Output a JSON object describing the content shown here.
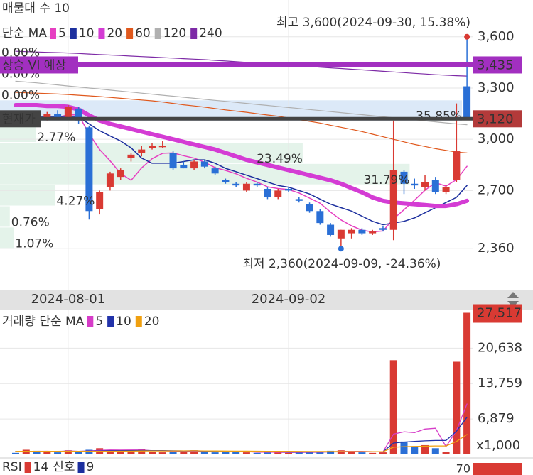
{
  "chart_data": [
    {
      "type": "candlestick",
      "title": "매물대 수 10",
      "legend_title": "단순 MA",
      "categories": [
        null,
        null,
        null,
        null,
        null,
        "2024-08-01",
        null,
        null,
        null,
        null,
        null,
        null,
        null,
        null,
        null,
        null,
        null,
        null,
        null,
        null,
        null,
        null,
        null,
        null,
        null,
        null,
        "2024-09-02",
        null,
        null,
        null,
        null,
        null,
        null,
        null,
        null,
        null,
        null,
        null,
        null,
        null,
        null,
        null,
        null,
        null
      ],
      "open": [
        3130,
        3100,
        3140,
        3120,
        3150,
        3130,
        3180,
        3070,
        2590,
        2720,
        2780,
        2890,
        2920,
        2950,
        2960,
        2920,
        2850,
        2830,
        2870,
        2830,
        2760,
        2740,
        2700,
        2740,
        2710,
        2660,
        2710,
        2650,
        2620,
        2580,
        2500,
        2420,
        2450,
        2470,
        2450,
        2480,
        2470,
        2810,
        2740,
        2720,
        2760,
        2690,
        2760,
        3310
      ],
      "high": [
        3150,
        3140,
        3160,
        3160,
        3170,
        3200,
        3190,
        3080,
        2700,
        2810,
        2830,
        2920,
        2960,
        2980,
        2990,
        2930,
        2870,
        2880,
        2880,
        2840,
        2770,
        2750,
        2750,
        2750,
        2720,
        2710,
        2720,
        2660,
        2630,
        2590,
        2510,
        2470,
        2480,
        2480,
        2470,
        2490,
        3110,
        2820,
        2770,
        2790,
        2780,
        2730,
        3210,
        3600
      ],
      "low": [
        3100,
        3090,
        3110,
        3110,
        3120,
        3120,
        3090,
        2530,
        2560,
        2700,
        2760,
        2870,
        2900,
        2940,
        2950,
        2820,
        2830,
        2820,
        2830,
        2790,
        2740,
        2720,
        2690,
        2720,
        2650,
        2650,
        2690,
        2630,
        2570,
        2500,
        2430,
        2360,
        2420,
        2440,
        2440,
        2460,
        2410,
        2680,
        2710,
        2700,
        2680,
        2680,
        2750,
        3120
      ],
      "close": [
        3110,
        3130,
        3120,
        3150,
        3130,
        3190,
        3110,
        2580,
        2690,
        2800,
        2820,
        2910,
        2940,
        2960,
        2960,
        2830,
        2830,
        2870,
        2840,
        2800,
        2750,
        2730,
        2740,
        2730,
        2660,
        2700,
        2700,
        2640,
        2580,
        2510,
        2440,
        2470,
        2470,
        2450,
        2460,
        2470,
        2820,
        2740,
        2730,
        2750,
        2690,
        2720,
        2930,
        3120
      ],
      "up_color": "#d93a33",
      "down_color": "#2a6fd6",
      "series": [
        {
          "name": "5",
          "color": "#e63fc1",
          "width": 1.5,
          "values": [
            3120,
            3120,
            3120,
            3125,
            3128,
            3144,
            3142,
            3032,
            2940,
            2874,
            2800,
            2760,
            2832,
            2886,
            2918,
            2920,
            2904,
            2890,
            2866,
            2834,
            2818,
            2798,
            2772,
            2750,
            2722,
            2712,
            2706,
            2686,
            2656,
            2626,
            2574,
            2528,
            2494,
            2468,
            2458,
            2464,
            2534,
            2588,
            2644,
            2702,
            2746,
            2726,
            2764,
            2842
          ]
        },
        {
          "name": "10",
          "color": "#1c2f9e",
          "width": 1.5,
          "values": [
            3130,
            3130,
            3130,
            3130,
            3130,
            3130,
            3130,
            3090,
            3050,
            3020,
            2990,
            2950,
            2890,
            2860,
            2860,
            2860,
            2870,
            2880,
            2880,
            2860,
            2830,
            2810,
            2790,
            2770,
            2750,
            2730,
            2720,
            2700,
            2680,
            2650,
            2620,
            2600,
            2580,
            2550,
            2520,
            2500,
            2510,
            2520,
            2540,
            2570,
            2600,
            2630,
            2660,
            2730
          ]
        },
        {
          "name": "20",
          "color": "#d43cd4",
          "width": 6,
          "values": [
            3200,
            3200,
            3200,
            3195,
            3195,
            3190,
            3175,
            3140,
            3110,
            3090,
            3075,
            3060,
            3045,
            3030,
            3015,
            3000,
            2985,
            2970,
            2955,
            2940,
            2920,
            2900,
            2880,
            2865,
            2850,
            2835,
            2820,
            2805,
            2790,
            2775,
            2760,
            2740,
            2715,
            2690,
            2660,
            2640,
            2630,
            2625,
            2620,
            2615,
            2610,
            2610,
            2620,
            2640
          ]
        },
        {
          "name": "60",
          "color": "#e0581c",
          "width": 1.2,
          "values": [
            3275,
            3272,
            3270,
            3268,
            3265,
            3262,
            3258,
            3254,
            3250,
            3245,
            3240,
            3235,
            3230,
            3225,
            3218,
            3210,
            3202,
            3195,
            3188,
            3180,
            3172,
            3165,
            3158,
            3150,
            3142,
            3135,
            3125,
            3115,
            3105,
            3095,
            3082,
            3070,
            3058,
            3045,
            3030,
            3015,
            3000,
            2985,
            2970,
            2958,
            2945,
            2935,
            2925,
            2920
          ]
        },
        {
          "name": "120",
          "color": "#b0b0b0",
          "width": 1.2,
          "values": [
            3340,
            3335,
            3330,
            3324,
            3318,
            3312,
            3306,
            3300,
            3294,
            3288,
            3282,
            3276,
            3270,
            3264,
            3258,
            3252,
            3246,
            3240,
            3234,
            3228,
            3222,
            3216,
            3210,
            3204,
            3198,
            3192,
            3186,
            3180,
            3174,
            3168,
            3162,
            3156,
            3150,
            3144,
            3138,
            3132,
            3126,
            3120,
            3114,
            3108,
            3102,
            3096,
            3090,
            3085
          ]
        },
        {
          "name": "240",
          "color": "#7d2aa6",
          "width": 1.2,
          "values": [
            3515,
            3513,
            3511,
            3509,
            3507,
            3505,
            3502,
            3499,
            3496,
            3493,
            3490,
            3487,
            3484,
            3481,
            3478,
            3475,
            3472,
            3469,
            3466,
            3462,
            3458,
            3454,
            3450,
            3446,
            3442,
            3438,
            3434,
            3430,
            3426,
            3422,
            3418,
            3414,
            3410,
            3406,
            3402,
            3398,
            3394,
            3390,
            3386,
            3382,
            3378,
            3375,
            3372,
            3370
          ]
        }
      ],
      "ylim": [
        2120,
        3815
      ],
      "yticks": [
        {
          "value": 2360,
          "label": "2,360"
        },
        {
          "value": 2700,
          "label": "2,700"
        },
        {
          "value": 3000,
          "label": "3,000"
        },
        {
          "value": 3300,
          "label": "3,300"
        },
        {
          "value": 3600,
          "label": "3,600"
        }
      ],
      "grid": true,
      "profile": {
        "bins": [
          2360,
          2484,
          2608,
          2732,
          2856,
          2980,
          3104,
          3228,
          3352,
          3476,
          3600
        ],
        "values": [
          1.07,
          0.76,
          4.27,
          31.79,
          23.49,
          2.77,
          35.85,
          0,
          0,
          0
        ],
        "value_labels": [
          "1.07%",
          "0.76%",
          "4.27%",
          "31.79%",
          "23.49%",
          "2.77%",
          "35.85%",
          "0.00%",
          "0.00%",
          "0.00%"
        ],
        "colors": [
          "#e4f3ea",
          "#e4f3ea",
          "#e4f3ea",
          "#e4f3ea",
          "#e4f3ea",
          "#e4f3ea",
          "#dce9f8",
          "#e4f3ea",
          "#e4f3ea",
          "#e4f3ea"
        ],
        "label_colors": [
          "#1b7a4a",
          "#1b7a4a",
          "#1b7a4a",
          "#1b7a4a",
          "#1b7a4a",
          "#1b7a4a",
          "#2a6fb8",
          "#1b7a4a",
          "#1b7a4a",
          "#1b7a4a"
        ]
      },
      "high_label": "최고 3,600(2024-09-30, 15.38%)",
      "low_label": "최저 2,360(2024-09-09, -24.36%)",
      "vi": {
        "label": "상승 VI 예상",
        "value": {
          "value": 3435,
          "label": "3,435"
        },
        "color": "#a22fc0"
      },
      "current": {
        "label": "현재가",
        "value": {
          "value": 3120,
          "label": "3,120"
        },
        "color": "#b33a3a",
        "line_color": "#444444"
      }
    },
    {
      "type": "bar",
      "legend_title": "거래량 단순 MA",
      "values": [
        300,
        900,
        700,
        500,
        400,
        800,
        600,
        900,
        1200,
        800,
        700,
        600,
        1000,
        500,
        400,
        700,
        600,
        800,
        500,
        400,
        600,
        500,
        400,
        300,
        500,
        400,
        300,
        500,
        400,
        600,
        700,
        800,
        500,
        400,
        300,
        400,
        18300,
        2500,
        1600,
        1800,
        1200,
        500,
        18000,
        27517
      ],
      "up_color": "#d93a33",
      "down_color": "#2a6fd6",
      "series": [
        {
          "name": "5",
          "color": "#d63cc8",
          "values": [
            600,
            600,
            600,
            620,
            560,
            660,
            600,
            680,
            780,
            860,
            840,
            860,
            860,
            720,
            700,
            640,
            640,
            660,
            600,
            600,
            580,
            560,
            540,
            440,
            460,
            420,
            380,
            400,
            420,
            440,
            500,
            600,
            600,
            600,
            540,
            480,
            3940,
            4380,
            4220,
            4920,
            5080,
            1520,
            4620,
            9800
          ]
        },
        {
          "name": "10",
          "color": "#2233aa",
          "values": [
            600,
            600,
            600,
            600,
            600,
            620,
            610,
            640,
            680,
            710,
            720,
            730,
            760,
            740,
            730,
            700,
            680,
            710,
            650,
            620,
            610,
            600,
            580,
            530,
            520,
            490,
            460,
            470,
            470,
            480,
            480,
            500,
            520,
            520,
            490,
            490,
            2210,
            2400,
            2520,
            2640,
            2710,
            2700,
            4500,
            7210
          ]
        },
        {
          "name": "20",
          "color": "#f0a010",
          "values": [
            600,
            600,
            600,
            600,
            600,
            600,
            600,
            600,
            600,
            600,
            620,
            640,
            660,
            680,
            680,
            680,
            690,
            700,
            680,
            660,
            650,
            640,
            630,
            620,
            610,
            600,
            590,
            580,
            570,
            560,
            560,
            560,
            550,
            550,
            540,
            530,
            1400,
            1490,
            1540,
            1600,
            1640,
            1640,
            2510,
            3860
          ]
        }
      ],
      "ylim": [
        0,
        28000
      ],
      "yticks": [
        {
          "value": 6879,
          "label": "6,879"
        },
        {
          "value": 13759,
          "label": "13,759"
        },
        {
          "value": 20638,
          "label": "20,638"
        }
      ],
      "unit_label": "x1,000",
      "current": {
        "value": 27517,
        "label": "27,517"
      },
      "current_color": "#d93a33"
    }
  ],
  "rsi": {
    "title": "RSI",
    "period": 14,
    "period_color": "#d93a33",
    "signal_label": "신호",
    "signal": 9,
    "signal_color": "#1c2f9e",
    "tick": 70
  }
}
